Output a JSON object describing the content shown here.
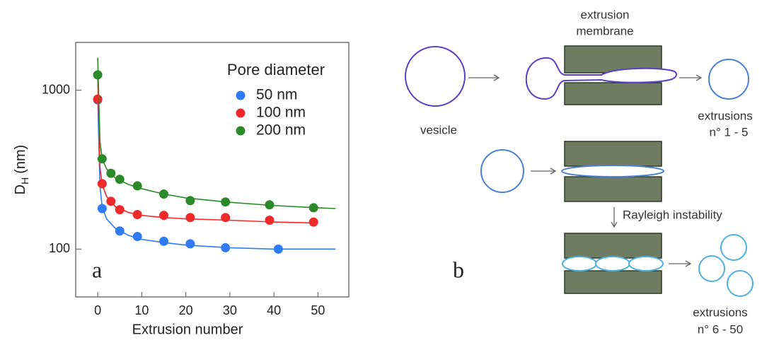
{
  "chart_data": {
    "type": "scatter",
    "xlabel": "Extrusion number",
    "ylabel": "D",
    "ylabel_sub": "H",
    "ylabel_unit": "(nm)",
    "legend_title": "Pore diameter",
    "panel_label": "a",
    "xlim": [
      -5,
      57
    ],
    "xticks": [
      0,
      10,
      20,
      30,
      40,
      50
    ],
    "ylim": [
      50,
      2000
    ],
    "yticks": [
      100,
      1000
    ],
    "yscale": "log",
    "series": [
      {
        "name": "50 nm",
        "color": "#2f7bf5",
        "x": [
          0,
          1,
          5,
          9,
          15,
          21,
          29,
          41
        ],
        "values": [
          870,
          180,
          130,
          120,
          112,
          108,
          102,
          100
        ],
        "fit": {
          "x": [
            0,
            0.5,
            1,
            2,
            4,
            7,
            10,
            15,
            20,
            30,
            40,
            50,
            54
          ],
          "values": [
            900,
            250,
            185,
            155,
            135,
            122,
            115,
            110,
            106,
            102,
            100,
            100,
            100
          ]
        }
      },
      {
        "name": "100 nm",
        "color": "#f02a2a",
        "x": [
          0,
          1,
          3,
          5,
          9,
          15,
          21,
          29,
          39,
          49
        ],
        "values": [
          880,
          258,
          200,
          177,
          165,
          163,
          158,
          158,
          152,
          148
        ],
        "fit": {
          "x": [
            0,
            0.5,
            1,
            2,
            4,
            7,
            10,
            15,
            20,
            30,
            40,
            50
          ],
          "values": [
            1200,
            330,
            255,
            215,
            185,
            170,
            163,
            158,
            155,
            152,
            148,
            146
          ]
        }
      },
      {
        "name": "200 nm",
        "color": "#2a8a2a",
        "x": [
          0,
          1,
          3,
          5,
          9,
          15,
          21,
          29,
          39,
          49
        ],
        "values": [
          1250,
          370,
          300,
          275,
          250,
          222,
          202,
          198,
          190,
          182
        ],
        "fit": {
          "x": [
            0,
            0.5,
            1,
            2,
            4,
            7,
            10,
            15,
            20,
            30,
            40,
            50,
            54
          ],
          "values": [
            1600,
            480,
            370,
            320,
            280,
            255,
            240,
            222,
            210,
            197,
            188,
            182,
            180
          ]
        }
      }
    ]
  },
  "diagram": {
    "panel_label": "b",
    "membrane_line1": "extrusion",
    "membrane_line2": "membrane",
    "vesicle": "vesicle",
    "out1_line1": "extrusions",
    "out1_line2": "n° 1 - 5",
    "instability": "Rayleigh instability",
    "out2_line1": "extrusions",
    "out2_line2": "n° 6 - 50"
  }
}
